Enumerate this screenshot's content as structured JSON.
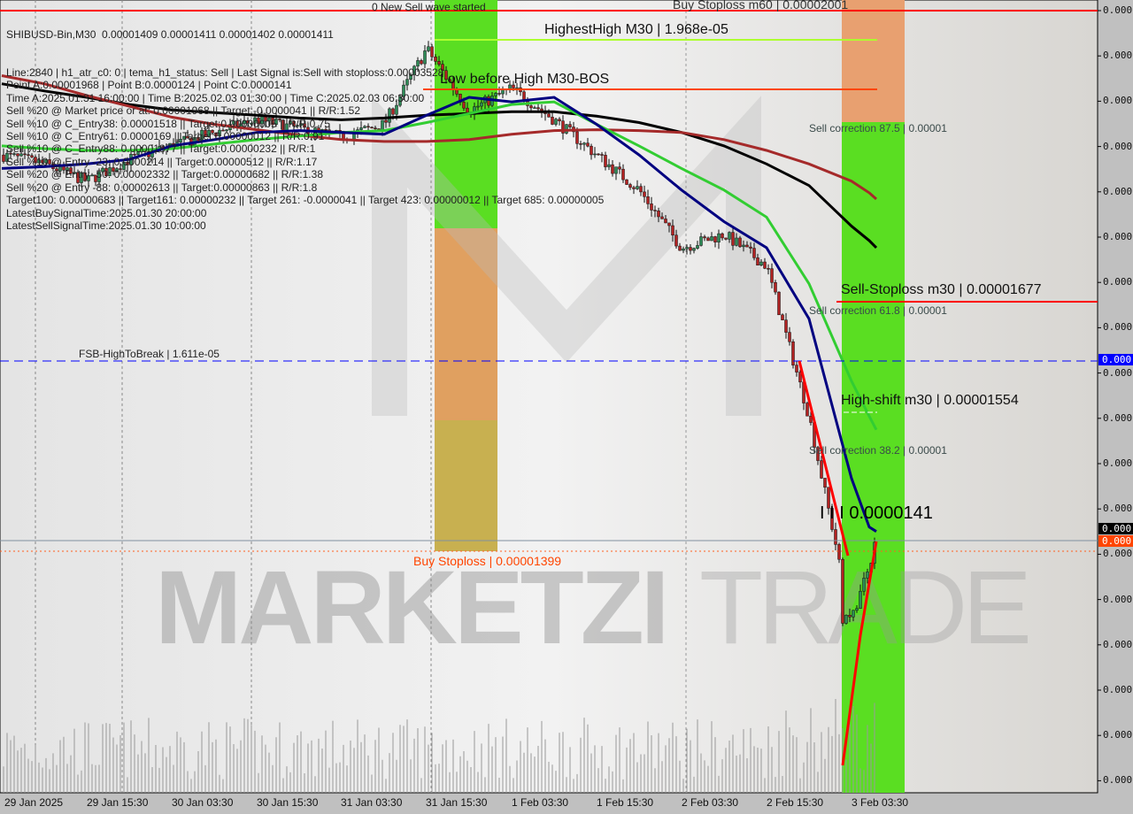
{
  "chart_data": {
    "type": "candlestick",
    "symbol_line": "SHIBUSD-Bin,M30  0.00001409 0.00001411 0.00001402 0.00001411",
    "info_lines": [
      "Line:2840 | h1_atr_c0: 0 | tema_h1_status: Sell | Last Signal is:Sell with stoploss:0.00003528",
      "Point A:0.00001968 | Point B:0.0000124 | Point C:0.0000141",
      "Time A:2025.01.31 16:00:00 | Time B:2025.02.03 01:30:00 | Time C:2025.02.03 06:30:00",
      "Sell %20 @ Market price or at: 0.00001968 || Target:-0.0000041 || R/R:1.52",
      "Sell %10 @ C_Entry38: 0.00001518 || Target:0.00000005 || R/R:0.75",
      "Sell %10 @ C_Entry61: 0.0000169 || Target:0.00000012 || R/R:0.91",
      "Sell %10 @ C_Entry88: 0.00001877 || Target:0.00000232 || R/R:1",
      "Sell %10 @ Entry -23: 0.0000214 || Target:0.00000512 || R/R:1.17",
      "Sell %20 @ Entry -50: 0.00002332 || Target:0.00000682 || R/R:1.38",
      "Sell %20 @ Entry -88: 0.00002613 || Target:0.00000863 || R/R:1.8",
      "Target100: 0.00000683 || Target161: 0.00000232 || Target 261: -0.0000041 || Target 423: 0.00000012 || Target 685: 0.00000005",
      "LatestBuySignalTime:2025.01.30 20:00:00",
      "LatestSellSignalTime:2025.01.30 10:00:00"
    ],
    "annotations": {
      "top_stoploss": "Buy Stoploss m60 | 0.00002001",
      "new_sell_wave": "0 New Sell wave started",
      "highest_high": "HighestHigh   M30 | 1.968e-05",
      "low_before_high": "Low before High   M30-BOS",
      "sell_corr_875": "Sell correction 87.5 | 0.00001",
      "sell_corr_618": "Sell correction 61.8 | 0.00001",
      "sell_stoploss": "Sell-Stoploss m30 | 0.00001677",
      "fsb": "FSB-HighToBreak | 1.611e-05",
      "high_shift": "High-shift m30 | 0.00001554",
      "sell_corr_382": "Sell correction 38.2 | 0.00001",
      "point_c": "I I I 0.0000141",
      "buy_stoploss": "Buy Stoploss | 0.00001399"
    },
    "levels": {
      "buy_stoploss_m60": 2.001e-05,
      "highest_high": 1.968e-05,
      "sell_stoploss": 1.677e-05,
      "fsb_high_to_break": 1.611e-05,
      "high_shift": 1.554e-05,
      "current_price": 1.411e-05,
      "buy_stoploss": 1.399e-05
    },
    "ylim": [
      1.132e-05,
      2.012e-05
    ],
    "y_tick_labels": [
      "0.000",
      "0.000",
      "0.000",
      "0.000",
      "0.000",
      "0.000",
      "0.000",
      "0.000",
      "0.000",
      "0.000",
      "0.000",
      "0.000",
      "0.000",
      "0.000",
      "0.000",
      "0.000",
      "0.000",
      "0.000"
    ],
    "price_badges": {
      "fsb": "0.000",
      "current": "0.000",
      "buy_stoploss": "0.000"
    },
    "x_tick_labels": [
      "29 Jan 2025",
      "29 Jan 15:30",
      "30 Jan 03:30",
      "30 Jan 15:30",
      "31 Jan 03:30",
      "31 Jan 15:30",
      "1 Feb 03:30",
      "1 Feb 15:30",
      "2 Feb 03:30",
      "2 Feb 15:30",
      "3 Feb 03:30"
    ],
    "times": [
      "2025-01-29 03:30",
      "2025-01-29 09:30",
      "2025-01-29 15:30",
      "2025-01-29 21:30",
      "2025-01-30 03:30",
      "2025-01-30 09:30",
      "2025-01-30 15:30",
      "2025-01-30 21:30",
      "2025-01-31 03:30",
      "2025-01-31 09:30",
      "2025-01-31 15:30",
      "2025-01-31 21:30",
      "2025-02-01 03:30",
      "2025-02-01 09:30",
      "2025-02-01 15:30",
      "2025-02-01 21:30",
      "2025-02-02 03:30",
      "2025-02-02 09:30",
      "2025-02-02 15:30",
      "2025-02-02 21:30",
      "2025-02-03 03:30",
      "2025-02-03 06:00",
      "2025-02-03 07:00"
    ],
    "close": [
      1.84e-05,
      1.83e-05,
      1.811e-05,
      1.835e-05,
      1.85e-05,
      1.865e-05,
      1.879e-05,
      1.869e-05,
      1.86e-05,
      1.874e-05,
      1.958e-05,
      1.889e-05,
      1.914e-05,
      1.879e-05,
      1.84e-05,
      1.801e-05,
      1.737e-05,
      1.752e-05,
      1.717e-05,
      1.55e-05,
      1.324e-05,
      1.383e-05,
      1.411e-05
    ],
    "series": [
      {
        "color": "#000000",
        "values": [
          1.919e-05,
          1.911e-05,
          1.904e-05,
          1.896e-05,
          1.89e-05,
          1.887e-05,
          1.884e-05,
          1.881e-05,
          1.879e-05,
          1.881e-05,
          1.884e-05,
          1.886e-05,
          1.888e-05,
          1.888e-05,
          1.883e-05,
          1.876e-05,
          1.865e-05,
          1.85e-05,
          1.83e-05,
          1.806e-05,
          1.761e-05,
          1.745e-05,
          1.737e-05
        ]
      },
      {
        "color": "#a52a2a",
        "values": [
          1.928e-05,
          1.919e-05,
          1.906e-05,
          1.894e-05,
          1.882e-05,
          1.874e-05,
          1.868e-05,
          1.862e-05,
          1.857e-05,
          1.855e-05,
          1.855e-05,
          1.857e-05,
          1.863e-05,
          1.867e-05,
          1.868e-05,
          1.867e-05,
          1.865e-05,
          1.857e-05,
          1.845e-05,
          1.83e-05,
          1.811e-05,
          1.798e-05,
          1.791e-05
        ]
      },
      {
        "color": "#32cd32",
        "values": [
          1.85e-05,
          1.847e-05,
          1.845e-05,
          1.845e-05,
          1.847e-05,
          1.852e-05,
          1.857e-05,
          1.861e-05,
          1.865e-05,
          1.867e-05,
          1.876e-05,
          1.886e-05,
          1.896e-05,
          1.899e-05,
          1.874e-05,
          1.85e-05,
          1.825e-05,
          1.801e-05,
          1.771e-05,
          1.697e-05,
          1.589e-05,
          1.55e-05,
          1.535e-05
        ]
      },
      {
        "color": "#000080",
        "values": [
          1.825e-05,
          1.827e-05,
          1.83e-05,
          1.835e-05,
          1.85e-05,
          1.857e-05,
          1.865e-05,
          1.867e-05,
          1.865e-05,
          1.863e-05,
          1.884e-05,
          1.904e-05,
          1.899e-05,
          1.904e-05,
          1.874e-05,
          1.84e-05,
          1.801e-05,
          1.766e-05,
          1.737e-05,
          1.658e-05,
          1.481e-05,
          1.427e-05,
          1.422e-05
        ]
      }
    ],
    "colors": {
      "bull": "#2e8b57",
      "bear": "#b22222",
      "zone_green": "#5ade22",
      "zone_orange": "#e0a070",
      "stoploss": "#ff0000",
      "fsb": "#0000ff"
    },
    "watermark": "MARKETZI TRADE",
    "grid": false
  }
}
